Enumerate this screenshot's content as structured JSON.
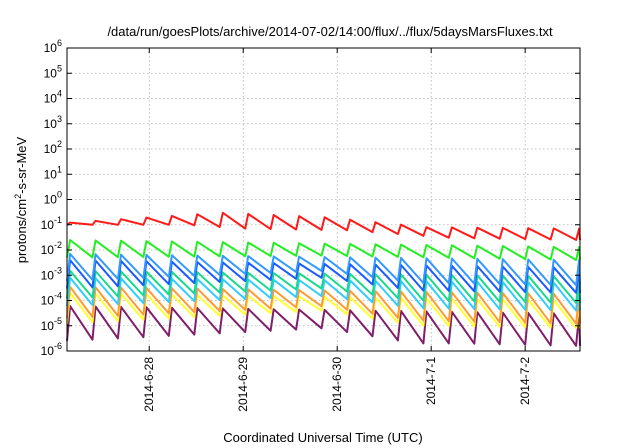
{
  "chart_data": {
    "type": "line",
    "title": "/data/run/goesPlots/archive/2014-07-02/14:00/flux/../flux/5daysMarsFluxes.txt",
    "xlabel": "Coordinated Universal Time (UTC)",
    "ylabel": {
      "prefix": "protons/cm",
      "sup": "2",
      "suffix": "-s-sr-MeV"
    },
    "yscale": "log",
    "ylim": [
      1e-06,
      1000000
    ],
    "y_ticks": [
      {
        "base": "10",
        "exp": "6",
        "value": 1000000
      },
      {
        "base": "10",
        "exp": "5",
        "value": 100000
      },
      {
        "base": "10",
        "exp": "4",
        "value": 10000
      },
      {
        "base": "10",
        "exp": "3",
        "value": 1000
      },
      {
        "base": "10",
        "exp": "2",
        "value": 100
      },
      {
        "base": "10",
        "exp": "1",
        "value": 10
      },
      {
        "base": "10",
        "exp": "0",
        "value": 1
      },
      {
        "base": "10",
        "exp": "-1",
        "value": 0.1
      },
      {
        "base": "10",
        "exp": "-2",
        "value": 0.01
      },
      {
        "base": "10",
        "exp": "-3",
        "value": 0.001
      },
      {
        "base": "10",
        "exp": "-4",
        "value": 0.0001
      },
      {
        "base": "10",
        "exp": "-5",
        "value": 1e-05
      },
      {
        "base": "10",
        "exp": "-6",
        "value": 1e-06
      }
    ],
    "xlim": [
      "2014-06-27T03:00",
      "2014-07-02T14:00"
    ],
    "x_ticks": [
      {
        "label": "2014-6-28",
        "value": "2014-06-28"
      },
      {
        "label": "2014-6-29",
        "value": "2014-06-29"
      },
      {
        "label": "2014-6-30",
        "value": "2014-06-30"
      },
      {
        "label": "2014-7-1",
        "value": "2014-07-01"
      },
      {
        "label": "2014-7-2",
        "value": "2014-07-02"
      }
    ],
    "grid": true,
    "legend": "none",
    "series": [
      {
        "color": "#7f1f6b",
        "period_hours": 6.5,
        "baseline": [
          [
            0.0,
            2.5e-06
          ],
          [
            0.5,
            8e-06
          ],
          [
            0.68,
            2e-06
          ],
          [
            0.76,
            2e-06
          ],
          [
            1.0,
            1.6e-06
          ]
        ],
        "peak": [
          [
            0.0,
            6e-05
          ],
          [
            1.0,
            3e-05
          ]
        ]
      },
      {
        "color": "#ffff33",
        "period_hours": 6.5,
        "baseline": [
          [
            0.0,
            1.2e-05
          ],
          [
            0.5,
            4e-05
          ],
          [
            0.68,
            1e-05
          ],
          [
            1.0,
            8e-06
          ]
        ],
        "peak": [
          [
            0.0,
            0.0002
          ],
          [
            1.0,
            0.0001
          ]
        ]
      },
      {
        "color": "#ff9a33",
        "period_hours": 6.5,
        "baseline": [
          [
            0.0,
            2e-05
          ],
          [
            0.5,
            6e-05
          ],
          [
            0.68,
            1.6e-05
          ],
          [
            1.0,
            1.2e-05
          ]
        ],
        "peak": [
          [
            0.0,
            0.00035
          ],
          [
            1.0,
            0.00018
          ]
        ]
      },
      {
        "color": "#33ccff",
        "period_hours": 6.5,
        "baseline": [
          [
            0.0,
            6e-05
          ],
          [
            0.5,
            0.00015
          ],
          [
            0.68,
            5e-05
          ],
          [
            1.0,
            4e-05
          ]
        ],
        "peak": [
          [
            0.0,
            0.0008
          ],
          [
            1.0,
            0.0005
          ]
        ]
      },
      {
        "color": "#19d98c",
        "period_hours": 6.5,
        "baseline": [
          [
            0.0,
            0.00012
          ],
          [
            0.5,
            0.0003
          ],
          [
            0.68,
            0.0001
          ],
          [
            1.0,
            8e-05
          ]
        ],
        "peak": [
          [
            0.0,
            0.0015
          ],
          [
            1.0,
            0.0009
          ]
        ]
      },
      {
        "color": "#1a5cff",
        "period_hours": 6.5,
        "baseline": [
          [
            0.0,
            0.0003
          ],
          [
            0.5,
            0.0008
          ],
          [
            0.68,
            0.00025
          ],
          [
            1.0,
            0.0002
          ]
        ],
        "peak": [
          [
            0.0,
            0.004
          ],
          [
            1.0,
            0.002
          ]
        ]
      },
      {
        "color": "#3399ff",
        "period_hours": 6.5,
        "baseline": [
          [
            0.0,
            0.0006
          ],
          [
            0.5,
            0.0015
          ],
          [
            0.68,
            0.0005
          ],
          [
            1.0,
            0.0004
          ]
        ],
        "peak": [
          [
            0.0,
            0.007
          ],
          [
            1.0,
            0.004
          ]
        ]
      },
      {
        "color": "#22ee22",
        "period_hours": 6.5,
        "baseline": [
          [
            0.0,
            0.005
          ],
          [
            0.5,
            0.006
          ],
          [
            1.0,
            0.004
          ]
        ],
        "peak": [
          [
            0.0,
            0.025
          ],
          [
            1.0,
            0.013
          ]
        ]
      },
      {
        "color": "#ff1a1a",
        "period_hours": 6.5,
        "baseline": [
          [
            0.0,
            0.1
          ],
          [
            0.23,
            0.1
          ],
          [
            0.35,
            0.07
          ],
          [
            0.55,
            0.06
          ],
          [
            0.75,
            0.03
          ],
          [
            1.0,
            0.025
          ]
        ],
        "peak": [
          [
            0.0,
            0.12
          ],
          [
            0.3,
            0.3
          ],
          [
            0.5,
            0.2
          ],
          [
            0.7,
            0.08
          ],
          [
            1.0,
            0.07
          ]
        ]
      }
    ]
  }
}
